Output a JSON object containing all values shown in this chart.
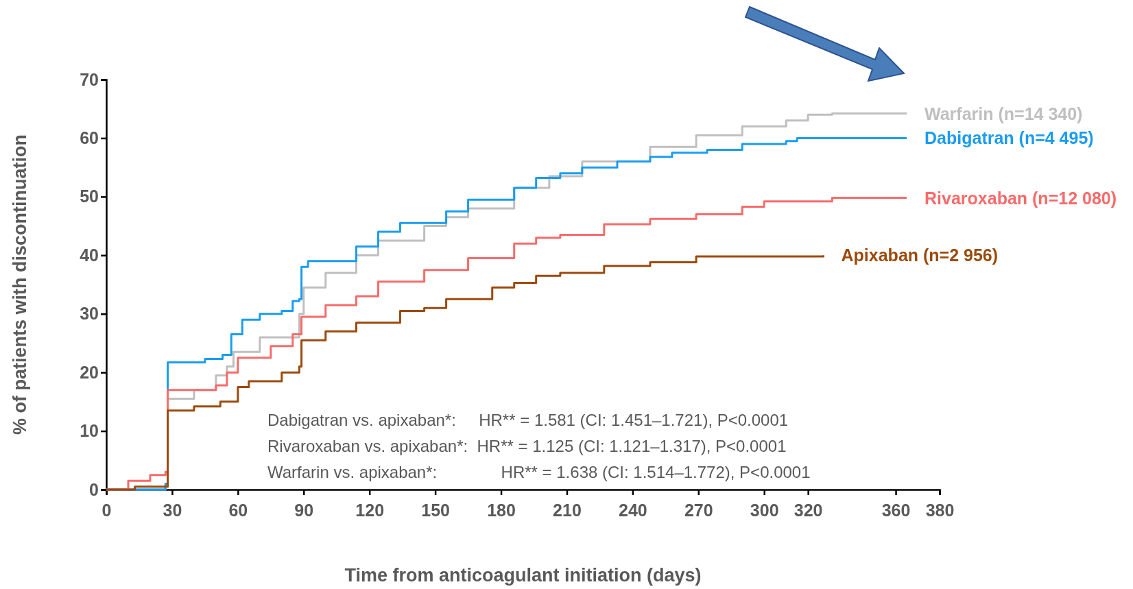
{
  "chart_data": {
    "type": "step",
    "xlabel": "Time from anticoagulant initiation (days)",
    "ylabel": "% of patients with discontinuation",
    "xlim": [
      0,
      380
    ],
    "ylim": [
      0,
      70
    ],
    "xticks": [
      0,
      30,
      60,
      90,
      120,
      150,
      180,
      210,
      240,
      270,
      300,
      320,
      360,
      380
    ],
    "yticks": [
      0,
      10,
      20,
      30,
      40,
      50,
      60,
      70
    ],
    "grid": false,
    "line_style": "solid",
    "marker": "none",
    "series": [
      {
        "name": "Warfarin (n=14 340)",
        "color": "#bfbfbf",
        "x": [
          0,
          27,
          28,
          40,
          50,
          55,
          58,
          70,
          88,
          90,
          100,
          114,
          124,
          145,
          155,
          165,
          186,
          202,
          217,
          248,
          269,
          290,
          310,
          320,
          331,
          365
        ],
        "values": [
          0,
          1,
          15.5,
          17,
          19.5,
          21,
          23.5,
          26,
          30,
          34.5,
          37,
          40,
          42.5,
          45,
          46.5,
          48,
          51.5,
          53.5,
          56,
          58.5,
          60.5,
          62,
          63,
          64,
          64.2,
          64.2
        ]
      },
      {
        "name": "Dabigatran (n=4 495)",
        "color": "#1a9cf0",
        "x": [
          0,
          27,
          28,
          45,
          53,
          57,
          62,
          70,
          80,
          85,
          88,
          89,
          92,
          114,
          124,
          134,
          155,
          165,
          186,
          196,
          207,
          217,
          233,
          248,
          258,
          274,
          290,
          310,
          315,
          365
        ],
        "values": [
          0,
          1,
          21.7,
          22.3,
          23,
          26.5,
          29,
          30,
          30.5,
          32.2,
          32.5,
          38,
          39,
          41.5,
          44,
          45.5,
          47.5,
          49.5,
          51.5,
          53.2,
          54,
          55,
          56,
          56.8,
          57.5,
          58,
          59,
          59.5,
          60,
          60
        ]
      },
      {
        "name": "Rivaroxaban (n=12 080)",
        "color": "#f76b6b",
        "x": [
          0,
          10,
          20,
          27,
          28,
          50,
          55,
          60,
          75,
          85,
          88,
          89,
          100,
          114,
          124,
          145,
          165,
          186,
          196,
          207,
          227,
          248,
          269,
          290,
          300,
          331,
          365
        ],
        "values": [
          0,
          1.5,
          2.5,
          3,
          17,
          17.8,
          20,
          22.5,
          24.5,
          26.5,
          26.5,
          29.5,
          31.5,
          33,
          35.5,
          37.5,
          39.5,
          42,
          43,
          43.5,
          45.3,
          46.2,
          47,
          48.3,
          49.2,
          49.8,
          49.8
        ]
      },
      {
        "name": "Apixaban (n=2 956)",
        "color": "#9c4a0c",
        "x": [
          0,
          13,
          27,
          28,
          40,
          52,
          60,
          65,
          80,
          88,
          89,
          100,
          114,
          134,
          145,
          155,
          176,
          186,
          196,
          207,
          227,
          248,
          269,
          327
        ],
        "values": [
          0,
          0.5,
          0.5,
          13.5,
          14.2,
          15,
          17.5,
          18.5,
          20,
          21,
          25.5,
          27,
          28.5,
          30.5,
          31,
          32.5,
          34.5,
          35.3,
          36.5,
          37,
          38.2,
          38.8,
          39.8,
          40
        ]
      }
    ],
    "annotations": [
      "Dabigatran vs. apixaban*:     HR** = 1.581 (CI: 1.451–1.721), P<0.0001",
      "Rivaroxaban vs. apixaban*:  HR** = 1.125 (CI: 1.121–1.317), P<0.0001",
      "Warfarin vs. apixaban*:              HR** = 1.638 (CI: 1.514–1.772), P<0.0001"
    ]
  }
}
